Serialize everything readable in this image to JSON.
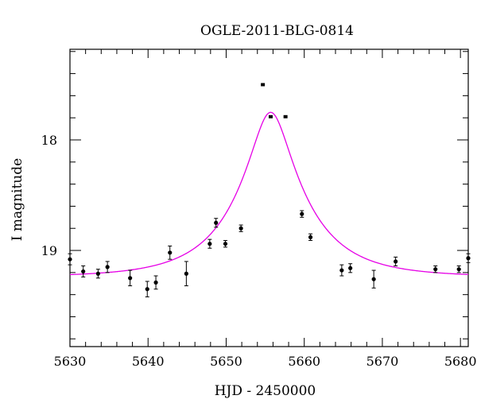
{
  "chart_data": {
    "type": "scatter",
    "title": "OGLE-2011-BLG-0814",
    "xlabel": "HJD - 2450000",
    "ylabel": "I magnitude",
    "xlim": [
      5630,
      5681
    ],
    "ylim": [
      19.87,
      17.18
    ],
    "y_inverted": true,
    "grid": false,
    "x_ticks": [
      5630,
      5640,
      5650,
      5660,
      5670,
      5680
    ],
    "y_ticks": [
      18,
      19
    ],
    "colors": {
      "model": "#e600e6",
      "points": "#000000"
    },
    "series": [
      {
        "type": "scatter_errorbar",
        "points": [
          {
            "x": 5630.0,
            "y": 19.08,
            "err": 0.05
          },
          {
            "x": 5631.7,
            "y": 19.19,
            "err": 0.05
          },
          {
            "x": 5633.6,
            "y": 19.21,
            "err": 0.04
          },
          {
            "x": 5634.8,
            "y": 19.15,
            "err": 0.05
          },
          {
            "x": 5637.7,
            "y": 19.25,
            "err": 0.07
          },
          {
            "x": 5639.9,
            "y": 19.35,
            "err": 0.07
          },
          {
            "x": 5641.0,
            "y": 19.29,
            "err": 0.06
          },
          {
            "x": 5642.8,
            "y": 19.02,
            "err": 0.06
          },
          {
            "x": 5644.9,
            "y": 19.21,
            "err": 0.11
          },
          {
            "x": 5647.9,
            "y": 18.94,
            "err": 0.04
          },
          {
            "x": 5648.7,
            "y": 18.75,
            "err": 0.04
          },
          {
            "x": 5649.9,
            "y": 18.94,
            "err": 0.03
          },
          {
            "x": 5651.9,
            "y": 18.8,
            "err": 0.03
          },
          {
            "x": 5654.7,
            "y": 17.5,
            "err": 0.01
          },
          {
            "x": 5655.7,
            "y": 17.79,
            "err": 0.01
          },
          {
            "x": 5657.6,
            "y": 17.79,
            "err": 0.01
          },
          {
            "x": 5659.7,
            "y": 18.67,
            "err": 0.03
          },
          {
            "x": 5660.8,
            "y": 18.88,
            "err": 0.03
          },
          {
            "x": 5664.8,
            "y": 19.18,
            "err": 0.05
          },
          {
            "x": 5665.9,
            "y": 19.16,
            "err": 0.04
          },
          {
            "x": 5668.9,
            "y": 19.26,
            "err": 0.08
          },
          {
            "x": 5671.7,
            "y": 19.1,
            "err": 0.04
          },
          {
            "x": 5676.8,
            "y": 19.17,
            "err": 0.03
          },
          {
            "x": 5679.8,
            "y": 19.17,
            "err": 0.03
          },
          {
            "x": 5681.0,
            "y": 19.07,
            "err": 0.04
          }
        ]
      },
      {
        "type": "line",
        "model": "paczynski",
        "t0": 5655.7,
        "tE": 9.0,
        "u0": 0.26,
        "baseline": 19.24
      }
    ]
  }
}
